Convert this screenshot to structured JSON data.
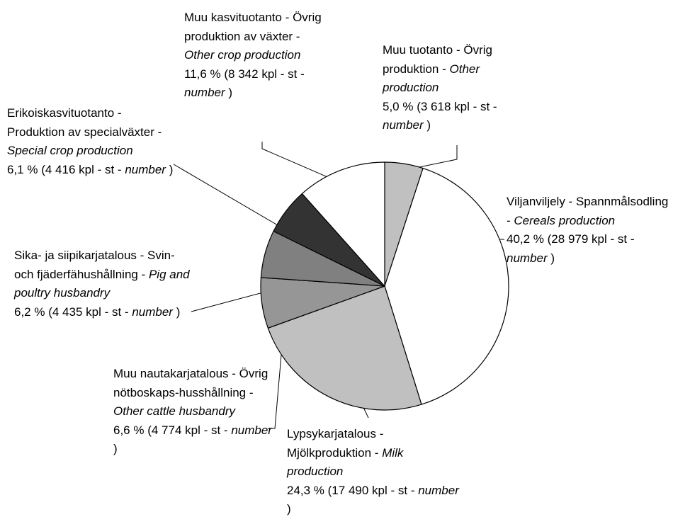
{
  "chart_data": {
    "type": "pie",
    "categories": [
      "Muu tuotanto - Övrig produktion -",
      "Viljanviljely - Spannmålsodling -",
      "Lypsykarjatalous - Mjölkproduktion -",
      "Muu nautakarjatalous - Övrig nötboskaps-husshållning -",
      "Sika- ja siipikarjatalous - Svin- och fjäderfähushållning -",
      "Erikoiskasvituotanto - Produktion av specialväxter -",
      "Muu kasvituotanto - Övrig produktion av växter -"
    ],
    "categories_en": [
      "Other production",
      "Cereals production",
      "Milk production",
      "Other cattle husbandry",
      "Pig and poultry husbandry",
      "Special crop production",
      "Other crop production"
    ],
    "values": [
      5.0,
      40.2,
      24.3,
      6.6,
      6.2,
      6.1,
      11.6
    ],
    "value_labels": [
      "5,0 % (3 618 kpl - st -",
      "40,2 % (28 979 kpl - st -",
      "24,3 % (17 490 kpl - st -",
      "6,6 % (4 774 kpl - st -",
      "6,2 % (4 435 kpl - st -",
      "6,1 % (4 416 kpl - st -",
      "11,6 % (8 342 kpl - st -"
    ],
    "unit_en": "number",
    "unit_close": ")",
    "colors": [
      "#c0c0c0",
      "#ffffff",
      "#c0c0c0",
      "#969696",
      "#808080",
      "#333333",
      "#ffffff"
    ]
  }
}
